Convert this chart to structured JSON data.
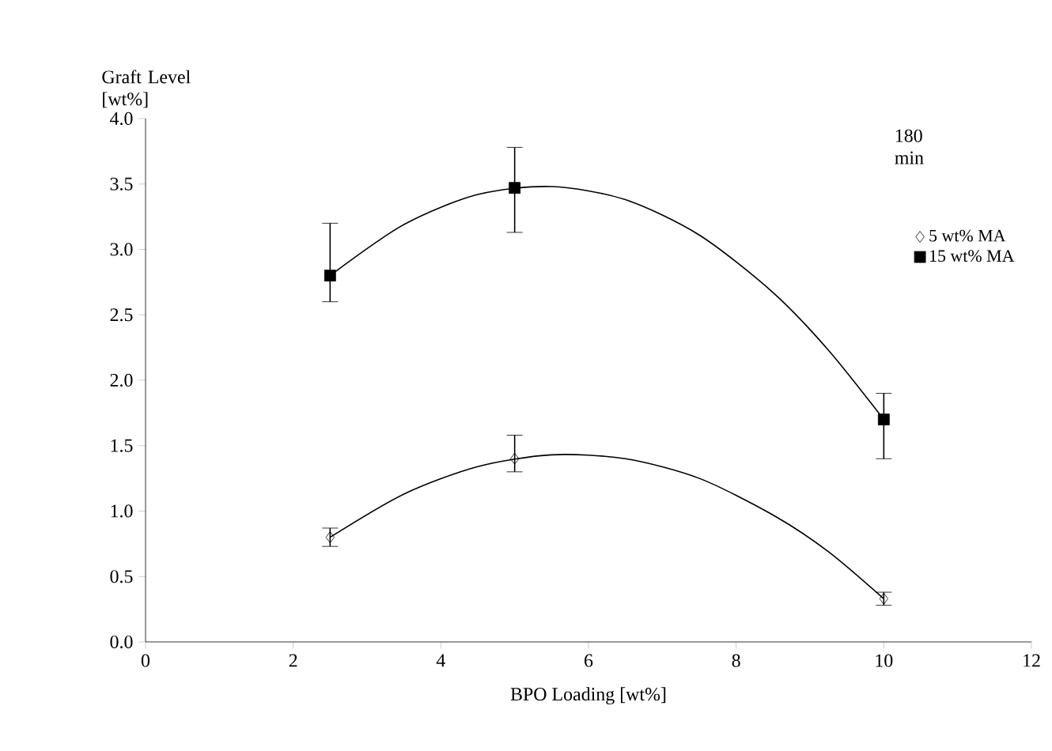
{
  "chart_data": {
    "type": "scatter",
    "xlabel": "BPO Loading [wt%]",
    "ylabel": "Graft Level [wt%]",
    "legend_title": "180 min",
    "xlim": [
      0,
      12
    ],
    "xticks": [
      0,
      2,
      4,
      6,
      8,
      10,
      12
    ],
    "ylim": [
      0,
      4
    ],
    "yticks": [
      {
        "value": 0,
        "label": "0.0"
      },
      {
        "value": 0.5,
        "label": "0.5"
      },
      {
        "value": 1,
        "label": "1.0"
      },
      {
        "value": 1.5,
        "label": "1.5"
      },
      {
        "value": 2,
        "label": "2.0"
      },
      {
        "value": 2.5,
        "label": "2.5"
      },
      {
        "value": 3,
        "label": "3.0"
      },
      {
        "value": 3.5,
        "label": "3.5"
      },
      {
        "value": 4,
        "label": "4.0"
      }
    ],
    "grid": false,
    "legend": "top right",
    "series": [
      {
        "name": "5 wt% MA",
        "marker": "diamond",
        "color": "#000000",
        "x": [
          2.5,
          5,
          10
        ],
        "values": [
          0.8,
          1.4,
          0.33
        ],
        "errors": [
          [
            0.73,
            0.87
          ],
          [
            1.3,
            1.58
          ],
          [
            0.28,
            0.38
          ]
        ]
      },
      {
        "name": "15 wt% MA",
        "marker": "square",
        "color": "#000000",
        "x": [
          2.5,
          5,
          10
        ],
        "values": [
          2.8,
          3.47,
          1.7
        ],
        "errors": [
          [
            2.6,
            3.2
          ],
          [
            3.13,
            3.78
          ],
          [
            1.4,
            1.9
          ]
        ]
      },
      {
        "type": "line",
        "color": "#000000",
        "x": [
          2.5,
          3.5,
          4.5,
          5.5,
          6.5,
          7.5,
          8.5,
          9.25,
          10
        ],
        "values": [
          0.8,
          1.13,
          1.34,
          1.43,
          1.4,
          1.25,
          0.97,
          0.69,
          0.33
        ]
      },
      {
        "type": "line",
        "color": "#000000",
        "x": [
          2.5,
          3.5,
          4.5,
          5.5,
          6.5,
          7.5,
          8.5,
          9.25,
          10
        ],
        "values": [
          2.8,
          3.19,
          3.42,
          3.48,
          3.38,
          3.11,
          2.67,
          2.23,
          1.7
        ]
      }
    ]
  }
}
